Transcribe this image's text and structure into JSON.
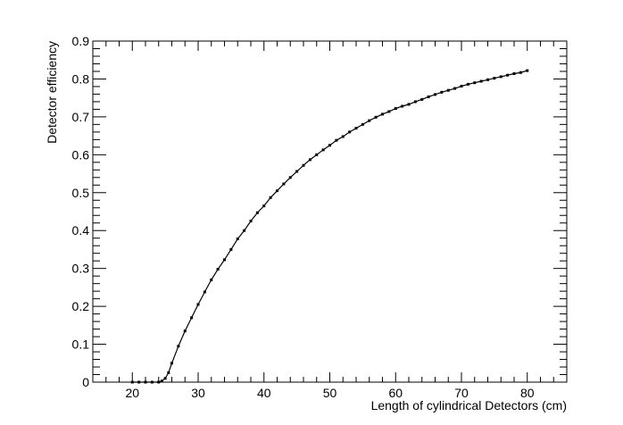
{
  "chart_data": {
    "type": "line",
    "title": "",
    "xlabel": "Length of cylindrical Detectors (cm)",
    "ylabel": "Detector efficiency",
    "xlim": [
      14,
      86
    ],
    "ylim": [
      0,
      0.9
    ],
    "x_major_ticks": [
      20,
      30,
      40,
      50,
      60,
      70,
      80
    ],
    "y_major_ticks": [
      0,
      0.1,
      0.2,
      0.3,
      0.4,
      0.5,
      0.6,
      0.7,
      0.8,
      0.9
    ],
    "x_tick_labels": [
      "20",
      "30",
      "40",
      "50",
      "60",
      "70",
      "80"
    ],
    "y_tick_labels": [
      "0",
      "0.1",
      "0.2",
      "0.3",
      "0.4",
      "0.5",
      "0.6",
      "0.7",
      "0.8",
      "0.9"
    ],
    "grid": false,
    "legend": "none",
    "series": [
      {
        "x": [
          20,
          21,
          22,
          23,
          24,
          24.5,
          25,
          25.5,
          26,
          27,
          28,
          29,
          30,
          31,
          32,
          33,
          34,
          35,
          36,
          37,
          38,
          39,
          40,
          41,
          42,
          43,
          44,
          45,
          46,
          47,
          48,
          49,
          50,
          51,
          52,
          53,
          54,
          55,
          56,
          57,
          58,
          59,
          60,
          61,
          62,
          63,
          64,
          65,
          66,
          67,
          68,
          69,
          70,
          71,
          72,
          73,
          74,
          75,
          76,
          77,
          78,
          79,
          80
        ],
        "values": [
          0,
          0,
          0,
          0,
          0,
          0.003,
          0.01,
          0.025,
          0.05,
          0.095,
          0.135,
          0.17,
          0.205,
          0.238,
          0.27,
          0.298,
          0.323,
          0.35,
          0.378,
          0.4,
          0.425,
          0.447,
          0.465,
          0.487,
          0.505,
          0.523,
          0.54,
          0.556,
          0.572,
          0.587,
          0.6,
          0.613,
          0.625,
          0.638,
          0.648,
          0.66,
          0.67,
          0.68,
          0.69,
          0.699,
          0.707,
          0.714,
          0.722,
          0.728,
          0.733,
          0.74,
          0.746,
          0.753,
          0.759,
          0.765,
          0.77,
          0.775,
          0.781,
          0.786,
          0.79,
          0.794,
          0.798,
          0.802,
          0.806,
          0.81,
          0.814,
          0.817,
          0.822
        ]
      }
    ]
  }
}
